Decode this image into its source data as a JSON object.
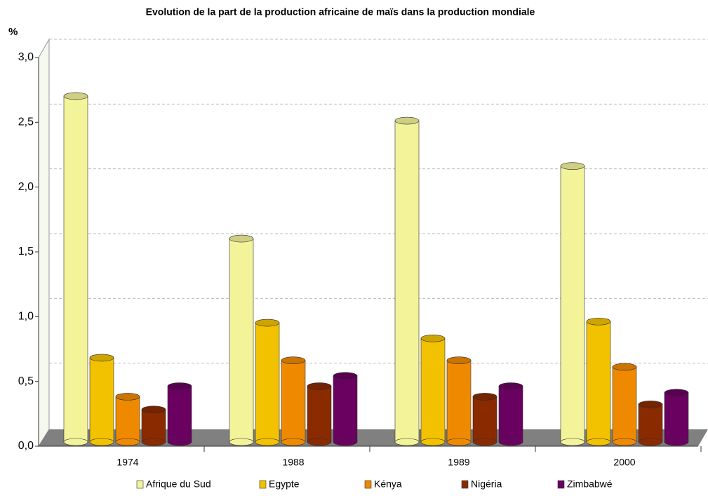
{
  "chart_data": {
    "type": "bar",
    "title": "Evolution de la part de la production africaine de maïs dans la production mondiale",
    "y_label": "%",
    "categories": [
      "1974",
      "1988",
      "1989",
      "2000"
    ],
    "series": [
      {
        "name": "Afrique du Sud",
        "color": "#f3f39a",
        "values": [
          2.67,
          1.57,
          2.48,
          2.13
        ]
      },
      {
        "name": "Egypte",
        "color": "#f2c200",
        "values": [
          0.65,
          0.92,
          0.8,
          0.93
        ]
      },
      {
        "name": "Kénya",
        "color": "#ef8a00",
        "values": [
          0.35,
          0.63,
          0.63,
          0.58
        ]
      },
      {
        "name": "Nigéria",
        "color": "#8a2a00",
        "values": [
          0.25,
          0.43,
          0.35,
          0.29
        ]
      },
      {
        "name": "Zimbabwé",
        "color": "#6a0060",
        "values": [
          0.43,
          0.51,
          0.43,
          0.38
        ]
      }
    ],
    "ylim": [
      0,
      3
    ],
    "yticks": [
      {
        "value": 0,
        "label": "0,0"
      },
      {
        "value": 0.5,
        "label": "0,5"
      },
      {
        "value": 1,
        "label": "1,0"
      },
      {
        "value": 1.5,
        "label": "1,5"
      },
      {
        "value": 2,
        "label": "2,0"
      },
      {
        "value": 2.5,
        "label": "2,5"
      },
      {
        "value": 3,
        "label": "3,0"
      }
    ],
    "grid": true
  }
}
